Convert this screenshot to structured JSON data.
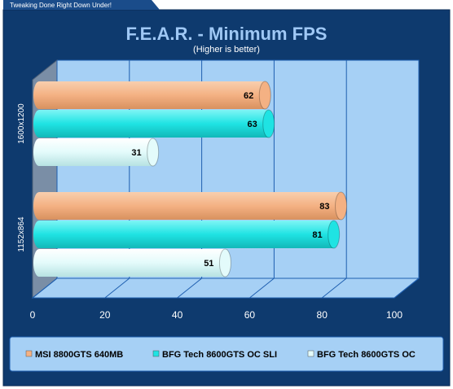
{
  "banner": "Tweaking Done Right Down Under!",
  "chart_data": {
    "type": "bar",
    "orientation": "horizontal",
    "title": "F.E.A.R. - Minimum FPS",
    "subtitle": "(Higher is better)",
    "categories": [
      "1600x1200",
      "1152x864"
    ],
    "series": [
      {
        "name": "MSI 8800GTS 640MB",
        "color": "#f4b183",
        "values": [
          62,
          83
        ]
      },
      {
        "name": "BFG Tech 8600GTS OC  SLI",
        "color": "#1fe3e3",
        "values": [
          63,
          81
        ]
      },
      {
        "name": "BFG Tech 8600GTS OC",
        "color": "#e3fbfb",
        "values": [
          31,
          51
        ]
      }
    ],
    "xlim": [
      0,
      100
    ],
    "xticks": [
      0,
      20,
      40,
      60,
      80,
      100
    ],
    "xtick_labels": [
      "0",
      "20",
      "40",
      "60",
      "80",
      "100"
    ],
    "grid": true,
    "legend_position": "bottom",
    "colors": {
      "background": "#0e3a6e",
      "plot": "#a6d0f5",
      "gridline": "#1e5fb0"
    }
  }
}
